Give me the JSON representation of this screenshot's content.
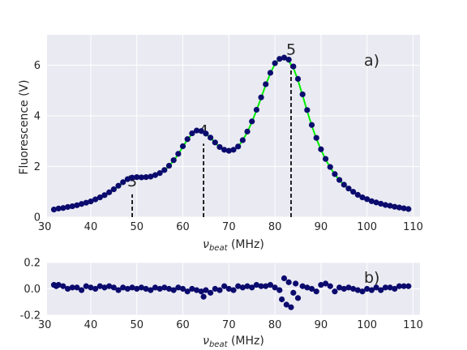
{
  "chart_data": [
    {
      "panel": "a)",
      "type": "scatter",
      "ylabel": "Fluorescence (V)",
      "xlabel": "ν_beat (MHz)",
      "xlim": [
        30.5,
        111.5
      ],
      "ylim": [
        0,
        7.2
      ],
      "xticks": [
        30,
        40,
        50,
        60,
        70,
        80,
        90,
        100,
        110
      ],
      "yticks": [
        0,
        2,
        4,
        6
      ],
      "grid": true,
      "markers": [
        {
          "label": "3",
          "x": 49,
          "y_top": 0.9
        },
        {
          "label": "4",
          "x": 64.5,
          "y_top": 2.9
        },
        {
          "label": "5",
          "x": 83.5,
          "y_top": 6.1
        }
      ],
      "series": [
        {
          "style": "points",
          "color": "#0b0b6e",
          "x": [
            32,
            33,
            34,
            35,
            36,
            37,
            38,
            39,
            40,
            41,
            42,
            43,
            44,
            45,
            46,
            47,
            48,
            49,
            50,
            51,
            52,
            53,
            54,
            55,
            56,
            57,
            58,
            59,
            60,
            61,
            62,
            63,
            64,
            65,
            66,
            67,
            68,
            69,
            70,
            71,
            72,
            73,
            74,
            75,
            76,
            77,
            78,
            79,
            80,
            81,
            82,
            83,
            84,
            85,
            86,
            87,
            88,
            89,
            90,
            91,
            92,
            93,
            94,
            95,
            96,
            97,
            98,
            99,
            100,
            101,
            102,
            103,
            104,
            105,
            106,
            107,
            108,
            109
          ],
          "y": [
            0.3,
            0.34,
            0.36,
            0.4,
            0.43,
            0.47,
            0.52,
            0.57,
            0.62,
            0.7,
            0.78,
            0.87,
            0.98,
            1.1,
            1.24,
            1.38,
            1.5,
            1.56,
            1.58,
            1.57,
            1.58,
            1.6,
            1.66,
            1.74,
            1.86,
            2.03,
            2.25,
            2.5,
            2.8,
            3.08,
            3.31,
            3.42,
            3.4,
            3.3,
            3.14,
            2.95,
            2.77,
            2.66,
            2.62,
            2.66,
            2.79,
            3.04,
            3.38,
            3.78,
            4.24,
            4.73,
            5.25,
            5.7,
            6.08,
            6.25,
            6.3,
            6.22,
            5.95,
            5.46,
            4.85,
            4.23,
            3.64,
            3.13,
            2.68,
            2.3,
            1.98,
            1.7,
            1.47,
            1.28,
            1.13,
            1.0,
            0.88,
            0.78,
            0.71,
            0.63,
            0.58,
            0.53,
            0.48,
            0.45,
            0.41,
            0.38,
            0.35,
            0.32
          ]
        },
        {
          "style": "line",
          "color": "#00ee00",
          "x": [
            32,
            33,
            34,
            35,
            36,
            37,
            38,
            39,
            40,
            41,
            42,
            43,
            44,
            45,
            46,
            47,
            48,
            49,
            50,
            51,
            52,
            53,
            54,
            55,
            56,
            57,
            58,
            59,
            60,
            61,
            62,
            63,
            64,
            65,
            66,
            67,
            68,
            69,
            70,
            71,
            72,
            73,
            74,
            75,
            76,
            77,
            78,
            79,
            80,
            81,
            82,
            83,
            84,
            85,
            86,
            87,
            88,
            89,
            90,
            91,
            92,
            93,
            94,
            95,
            96,
            97,
            98,
            99,
            100,
            101,
            102,
            103,
            104,
            105,
            106,
            107,
            108,
            109
          ],
          "y": [
            0.28,
            0.31,
            0.34,
            0.37,
            0.41,
            0.45,
            0.5,
            0.55,
            0.61,
            0.68,
            0.76,
            0.85,
            0.96,
            1.08,
            1.21,
            1.35,
            1.47,
            1.54,
            1.57,
            1.57,
            1.58,
            1.6,
            1.65,
            1.73,
            1.85,
            2.02,
            2.23,
            2.48,
            2.78,
            3.06,
            3.29,
            3.41,
            3.4,
            3.29,
            3.13,
            2.94,
            2.77,
            2.65,
            2.62,
            2.66,
            2.79,
            3.03,
            3.36,
            3.76,
            4.22,
            4.71,
            5.22,
            5.68,
            6.05,
            6.23,
            6.26,
            6.16,
            5.9,
            5.41,
            4.81,
            4.19,
            3.61,
            3.1,
            2.66,
            2.28,
            1.96,
            1.69,
            1.46,
            1.27,
            1.12,
            0.99,
            0.87,
            0.78,
            0.7,
            0.63,
            0.57,
            0.52,
            0.47,
            0.44,
            0.4,
            0.37,
            0.34,
            0.31
          ]
        }
      ]
    },
    {
      "panel": "b)",
      "type": "scatter",
      "xlabel": "ν_beat (MHz)",
      "xlim": [
        30.5,
        111.5
      ],
      "ylim": [
        -0.2,
        0.2
      ],
      "xticks": [
        30,
        40,
        50,
        60,
        70,
        80,
        90,
        100,
        110
      ],
      "yticks": [
        -0.2,
        0.0,
        0.2
      ],
      "grid": true,
      "series": [
        {
          "style": "points",
          "color": "#0b0b6e",
          "x": [
            32,
            32.5,
            33,
            34,
            35,
            36,
            37,
            38,
            39,
            40,
            41,
            42,
            43,
            44,
            45,
            46,
            47,
            48,
            49,
            50,
            51,
            52,
            53,
            54,
            55,
            56,
            57,
            58,
            59,
            60,
            61,
            62,
            63,
            64,
            64.5,
            65,
            66,
            67,
            68,
            69,
            70,
            71,
            72,
            73,
            74,
            75,
            76,
            77,
            78,
            79,
            80,
            81,
            81.5,
            82,
            82.5,
            83,
            83.5,
            84,
            84.5,
            85,
            86,
            87,
            88,
            89,
            90,
            91,
            92,
            93,
            94,
            95,
            96,
            97,
            98,
            99,
            100,
            101,
            102,
            103,
            104,
            105,
            106,
            107,
            108,
            109
          ],
          "y": [
            0.03,
            0.02,
            0.03,
            0.02,
            0.0,
            0.01,
            0.01,
            -0.01,
            0.02,
            0.01,
            0.0,
            0.02,
            0.01,
            0.02,
            0.01,
            -0.01,
            0.01,
            0.0,
            0.01,
            0.0,
            0.01,
            0.0,
            -0.01,
            0.01,
            0.0,
            0.01,
            0.0,
            -0.01,
            0.01,
            0.0,
            -0.02,
            0.0,
            -0.01,
            -0.02,
            -0.06,
            -0.01,
            -0.03,
            0.0,
            -0.01,
            0.02,
            0.0,
            -0.01,
            0.02,
            0.01,
            0.02,
            0.01,
            0.03,
            0.02,
            0.02,
            0.03,
            0.01,
            -0.01,
            -0.08,
            0.08,
            -0.12,
            0.05,
            -0.14,
            -0.03,
            0.04,
            -0.07,
            0.02,
            0.01,
            0.0,
            -0.02,
            0.03,
            0.04,
            0.02,
            -0.02,
            0.01,
            0.0,
            0.01,
            0.0,
            -0.01,
            -0.02,
            0.0,
            -0.01,
            0.01,
            -0.01,
            0.01,
            0.01,
            0.0,
            0.02,
            0.02,
            0.02
          ]
        }
      ]
    }
  ],
  "labels": {
    "panel_a_letter": "a)",
    "panel_b_letter": "b)",
    "ylabel_a": "Fluorescence (V)",
    "xlabel_nu": "ν",
    "xlabel_sub": "beat",
    "xlabel_unit": " (MHz)"
  }
}
